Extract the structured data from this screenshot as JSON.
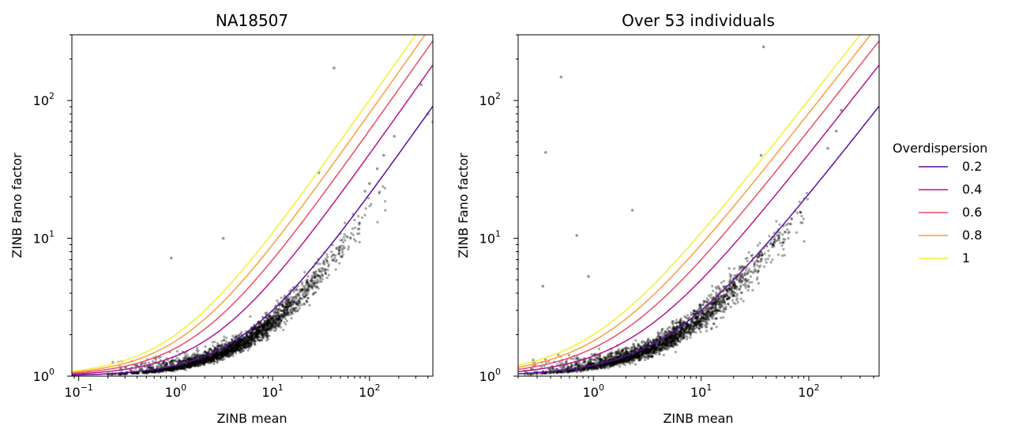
{
  "chart_data": [
    {
      "type": "scatter",
      "title": "NA18507",
      "xlabel": "ZINB mean",
      "ylabel": "ZINB Fano factor",
      "xscale": "log",
      "yscale": "log",
      "xlim": [
        0.085,
        450
      ],
      "ylim": [
        1,
        300
      ],
      "x_ticks": [
        {
          "value": 0.1,
          "base": "10",
          "exp": "−1"
        },
        {
          "value": 1,
          "base": "10",
          "exp": "0"
        },
        {
          "value": 10,
          "base": "10",
          "exp": "1"
        },
        {
          "value": 100,
          "base": "10",
          "exp": "2"
        }
      ],
      "y_ticks": [
        {
          "value": 1,
          "base": "10",
          "exp": "0"
        },
        {
          "value": 10,
          "base": "10",
          "exp": "1"
        },
        {
          "value": 100,
          "base": "10",
          "exp": "2"
        }
      ],
      "grid": false,
      "points_color": "#000000",
      "series": [
        {
          "name": "0.2",
          "overdispersion": 0.2,
          "color": "#5c0f9c"
        },
        {
          "name": "0.4",
          "overdispersion": 0.4,
          "color": "#b5158f"
        },
        {
          "name": "0.6",
          "overdispersion": 0.6,
          "color": "#ea4c68"
        },
        {
          "name": "0.8",
          "overdispersion": 0.8,
          "color": "#f99e3c"
        },
        {
          "name": "1",
          "overdispersion": 1.0,
          "color": "#f4f02d"
        }
      ],
      "outliers": [
        [
          43,
          172
        ],
        [
          30,
          30
        ],
        [
          3.1,
          10
        ],
        [
          0.9,
          7.2
        ],
        [
          450,
          70
        ],
        [
          400,
          80
        ],
        [
          340,
          130
        ],
        [
          180,
          55
        ],
        [
          140,
          40
        ],
        [
          120,
          32
        ],
        [
          100,
          25
        ],
        [
          90,
          22
        ]
      ]
    },
    {
      "type": "scatter",
      "title": "Over 53 individuals",
      "xlabel": "ZINB mean",
      "ylabel": "ZINB Fano factor",
      "xscale": "log",
      "yscale": "log",
      "xlim": [
        0.2,
        450
      ],
      "ylim": [
        1,
        300
      ],
      "x_ticks": [
        {
          "value": 1,
          "base": "10",
          "exp": "0"
        },
        {
          "value": 10,
          "base": "10",
          "exp": "1"
        },
        {
          "value": 100,
          "base": "10",
          "exp": "2"
        }
      ],
      "y_ticks": [
        {
          "value": 1,
          "base": "10",
          "exp": "0"
        },
        {
          "value": 10,
          "base": "10",
          "exp": "1"
        },
        {
          "value": 100,
          "base": "10",
          "exp": "2"
        }
      ],
      "grid": false,
      "points_color": "#000000",
      "series": [
        {
          "name": "0.2",
          "overdispersion": 0.2,
          "color": "#5c0f9c"
        },
        {
          "name": "0.4",
          "overdispersion": 0.4,
          "color": "#b5158f"
        },
        {
          "name": "0.6",
          "overdispersion": 0.6,
          "color": "#ea4c68"
        },
        {
          "name": "0.8",
          "overdispersion": 0.8,
          "color": "#f99e3c"
        },
        {
          "name": "1",
          "overdispersion": 1.0,
          "color": "#f4f02d"
        }
      ],
      "outliers": [
        [
          38,
          245
        ],
        [
          0.5,
          148
        ],
        [
          0.36,
          42
        ],
        [
          2.3,
          16
        ],
        [
          0.7,
          10.5
        ],
        [
          0.34,
          4.5
        ],
        [
          0.9,
          5.3
        ],
        [
          36,
          40
        ],
        [
          200,
          85
        ],
        [
          180,
          60
        ],
        [
          150,
          45
        ]
      ]
    }
  ],
  "legend": {
    "title": "Overdispersion",
    "placement": "outside-right",
    "entries": [
      {
        "label": "0.2",
        "color": "#5c0f9c"
      },
      {
        "label": "0.4",
        "color": "#b5158f"
      },
      {
        "label": "0.6",
        "color": "#ea4c68"
      },
      {
        "label": "0.8",
        "color": "#f99e3c"
      },
      {
        "label": "1",
        "color": "#f4f02d"
      }
    ]
  }
}
